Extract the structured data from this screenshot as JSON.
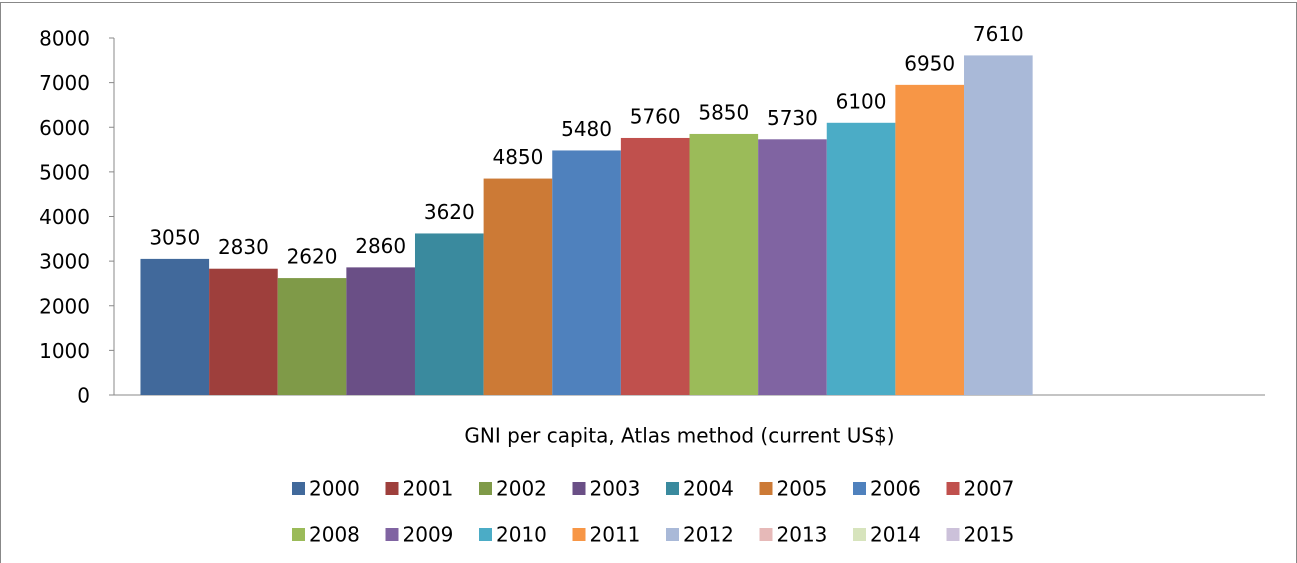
{
  "chart_data": {
    "type": "bar",
    "categories": [
      "GNI per capita, Atlas method (current US$)"
    ],
    "series": [
      {
        "name": "2000",
        "color": "#41699b",
        "values": [
          3050
        ]
      },
      {
        "name": "2001",
        "color": "#9e3f3c",
        "values": [
          2830
        ]
      },
      {
        "name": "2002",
        "color": "#7f9a48",
        "values": [
          2620
        ]
      },
      {
        "name": "2003",
        "color": "#6a4f86",
        "values": [
          2860
        ]
      },
      {
        "name": "2004",
        "color": "#3a8a9e",
        "values": [
          3620
        ]
      },
      {
        "name": "2005",
        "color": "#cc7a36",
        "values": [
          4850
        ]
      },
      {
        "name": "2006",
        "color": "#4f81bd",
        "values": [
          5480
        ]
      },
      {
        "name": "2007",
        "color": "#c0504d",
        "values": [
          5760
        ]
      },
      {
        "name": "2008",
        "color": "#9bbb59",
        "values": [
          5850
        ]
      },
      {
        "name": "2009",
        "color": "#8064a2",
        "values": [
          5730
        ]
      },
      {
        "name": "2010",
        "color": "#4bacc6",
        "values": [
          6100
        ]
      },
      {
        "name": "2011",
        "color": "#f79646",
        "values": [
          6950
        ]
      },
      {
        "name": "2012",
        "color": "#a9b9d8",
        "values": [
          7610
        ]
      },
      {
        "name": "2013",
        "color": "#e6b9b8",
        "values": [
          null
        ]
      },
      {
        "name": "2014",
        "color": "#d7e4bd",
        "values": [
          null
        ]
      },
      {
        "name": "2015",
        "color": "#ccc1da",
        "values": [
          null
        ]
      }
    ],
    "ylim": [
      0,
      8000
    ],
    "yticks": [
      0,
      1000,
      2000,
      3000,
      4000,
      5000,
      6000,
      7000,
      8000
    ],
    "grid": false,
    "legend": "bottom"
  }
}
